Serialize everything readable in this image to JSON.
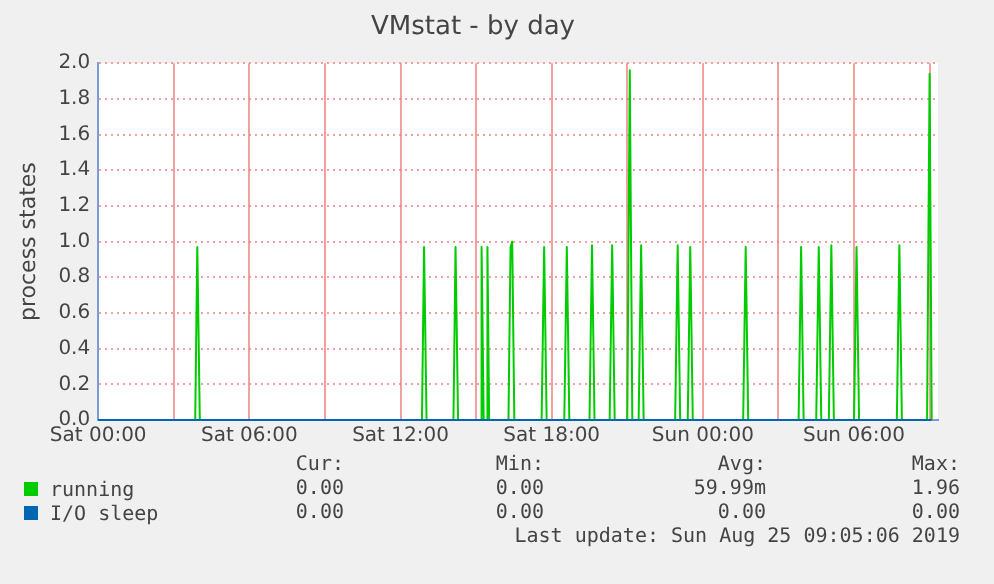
{
  "chart_data": {
    "type": "line",
    "title": "VMstat - by day",
    "ylabel": "process states",
    "series": [
      {
        "name": "running",
        "color": "#00cc00",
        "x": [
          "2019-08-24T00:00",
          "2019-08-24T03:51",
          "2019-08-24T03:56",
          "2019-08-24T04:02",
          "2019-08-24T12:51",
          "2019-08-24T12:56",
          "2019-08-24T13:02",
          "2019-08-24T14:06",
          "2019-08-24T14:11",
          "2019-08-24T14:17",
          "2019-08-24T15:10",
          "2019-08-24T15:13",
          "2019-08-24T15:18",
          "2019-08-24T15:24",
          "2019-08-24T15:27",
          "2019-08-24T15:31",
          "2019-08-24T16:17",
          "2019-08-24T16:22",
          "2019-08-24T16:26",
          "2019-08-24T16:31",
          "2019-08-24T17:36",
          "2019-08-24T17:42",
          "2019-08-24T17:48",
          "2019-08-24T18:30",
          "2019-08-24T18:36",
          "2019-08-24T18:42",
          "2019-08-24T19:30",
          "2019-08-24T19:36",
          "2019-08-24T19:42",
          "2019-08-24T20:18",
          "2019-08-24T20:24",
          "2019-08-24T20:30",
          "2019-08-24T21:00",
          "2019-08-24T21:06",
          "2019-08-24T21:12",
          "2019-08-24T21:27",
          "2019-08-24T21:33",
          "2019-08-24T21:39",
          "2019-08-24T22:54",
          "2019-08-24T23:00",
          "2019-08-24T23:06",
          "2019-08-24T23:24",
          "2019-08-24T23:30",
          "2019-08-24T23:36",
          "2019-08-25T01:36",
          "2019-08-25T01:42",
          "2019-08-25T01:48",
          "2019-08-25T03:48",
          "2019-08-25T03:54",
          "2019-08-25T04:00",
          "2019-08-25T04:30",
          "2019-08-25T04:36",
          "2019-08-25T04:42",
          "2019-08-25T05:00",
          "2019-08-25T05:06",
          "2019-08-25T05:12",
          "2019-08-25T06:00",
          "2019-08-25T06:06",
          "2019-08-25T06:12",
          "2019-08-25T07:42",
          "2019-08-25T07:48",
          "2019-08-25T07:54",
          "2019-08-25T08:54",
          "2019-08-25T09:00",
          "2019-08-25T09:05"
        ],
        "values": [
          0,
          0,
          0.97,
          0,
          0,
          0.97,
          0,
          0,
          0.97,
          0,
          0,
          0.97,
          0,
          0,
          0.97,
          0,
          0,
          0.97,
          1.0,
          0,
          0,
          0.97,
          0,
          0,
          0.97,
          0,
          0,
          0.98,
          0,
          0,
          0.98,
          0,
          0,
          1.96,
          0,
          0,
          0.98,
          0,
          0,
          0.98,
          0,
          0,
          0.97,
          0,
          0,
          0.97,
          0,
          0,
          0.97,
          0,
          0,
          0.97,
          0,
          0,
          0.98,
          0,
          0,
          0.97,
          0,
          0,
          0.98,
          0,
          0,
          1.94,
          0
        ]
      },
      {
        "name": "I/O sleep",
        "color": "#0066b3",
        "x": [
          "2019-08-24T00:00",
          "2019-08-25T09:05"
        ],
        "values": [
          0,
          0
        ]
      }
    ],
    "xlim": [
      "2019-08-24T00:00",
      "2019-08-25T09:20"
    ],
    "xticks": [
      {
        "value": "2019-08-24T00:00",
        "label": "Sat 00:00"
      },
      {
        "value": "2019-08-24T03:00",
        "label": null
      },
      {
        "value": "2019-08-24T06:00",
        "label": "Sat 06:00"
      },
      {
        "value": "2019-08-24T09:00",
        "label": null
      },
      {
        "value": "2019-08-24T12:00",
        "label": "Sat 12:00"
      },
      {
        "value": "2019-08-24T15:00",
        "label": null
      },
      {
        "value": "2019-08-24T18:00",
        "label": "Sat 18:00"
      },
      {
        "value": "2019-08-24T21:00",
        "label": null
      },
      {
        "value": "2019-08-25T00:00",
        "label": "Sun 00:00"
      },
      {
        "value": "2019-08-25T03:00",
        "label": null
      },
      {
        "value": "2019-08-25T06:00",
        "label": "Sun 06:00"
      },
      {
        "value": "2019-08-25T09:00",
        "label": null
      }
    ],
    "ylim": [
      0,
      2
    ],
    "yticks": [
      {
        "value": 0,
        "label": "0.0"
      },
      {
        "value": 0.2,
        "label": "0.2"
      },
      {
        "value": 0.4,
        "label": "0.4"
      },
      {
        "value": 0.6,
        "label": "0.6"
      },
      {
        "value": 0.8,
        "label": "0.8"
      },
      {
        "value": 1,
        "label": "1.0"
      },
      {
        "value": 1.2,
        "label": "1.2"
      },
      {
        "value": 1.4,
        "label": "1.4"
      },
      {
        "value": 1.6,
        "label": "1.6"
      },
      {
        "value": 1.8,
        "label": "1.8"
      },
      {
        "value": 2,
        "label": "2.0"
      }
    ],
    "grid": true,
    "legend": "bottom left",
    "marker": "none",
    "line_style": "solid",
    "annotations": [
      "Cur:",
      "Min:",
      "Avg:",
      "Max:",
      "0.00",
      "0.00",
      "59.99m",
      "1.96",
      "0.00",
      "0.00",
      "0.00",
      "0.00",
      "Last update: Sun Aug 25 09:05:06 2019"
    ]
  }
}
